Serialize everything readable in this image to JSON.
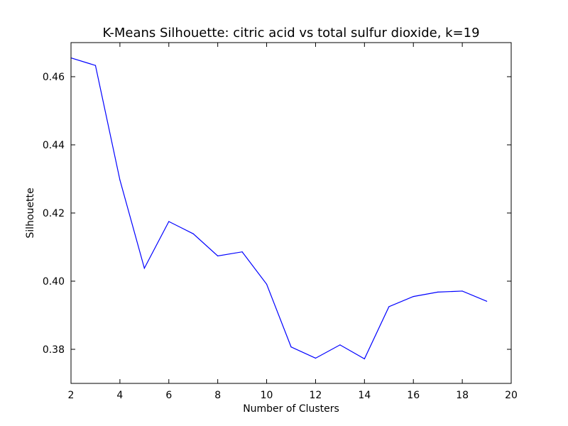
{
  "chart_data": {
    "type": "line",
    "title": "K-Means Silhouette: citric acid vs total sulfur dioxide, k=19",
    "xlabel": "Number of Clusters",
    "ylabel": "Silhouette",
    "xlim": [
      2,
      20
    ],
    "ylim": [
      0.37,
      0.47
    ],
    "xticks": [
      2,
      4,
      6,
      8,
      10,
      12,
      14,
      16,
      18,
      20
    ],
    "yticks": [
      0.38,
      0.4,
      0.42,
      0.44,
      0.46
    ],
    "ytick_labels": [
      "0.38",
      "0.40",
      "0.42",
      "0.44",
      "0.46"
    ],
    "grid": false,
    "series": [
      {
        "color": "#0000ff",
        "x": [
          2,
          3,
          4,
          5,
          6,
          7,
          8,
          9,
          10,
          11,
          12,
          13,
          14,
          15,
          16,
          17,
          18,
          19
        ],
        "y": [
          0.4655,
          0.4633,
          0.4297,
          0.4038,
          0.4175,
          0.4139,
          0.4074,
          0.4086,
          0.3991,
          0.3807,
          0.3774,
          0.3813,
          0.3772,
          0.3925,
          0.3955,
          0.3968,
          0.3971,
          0.3941
        ]
      }
    ]
  }
}
